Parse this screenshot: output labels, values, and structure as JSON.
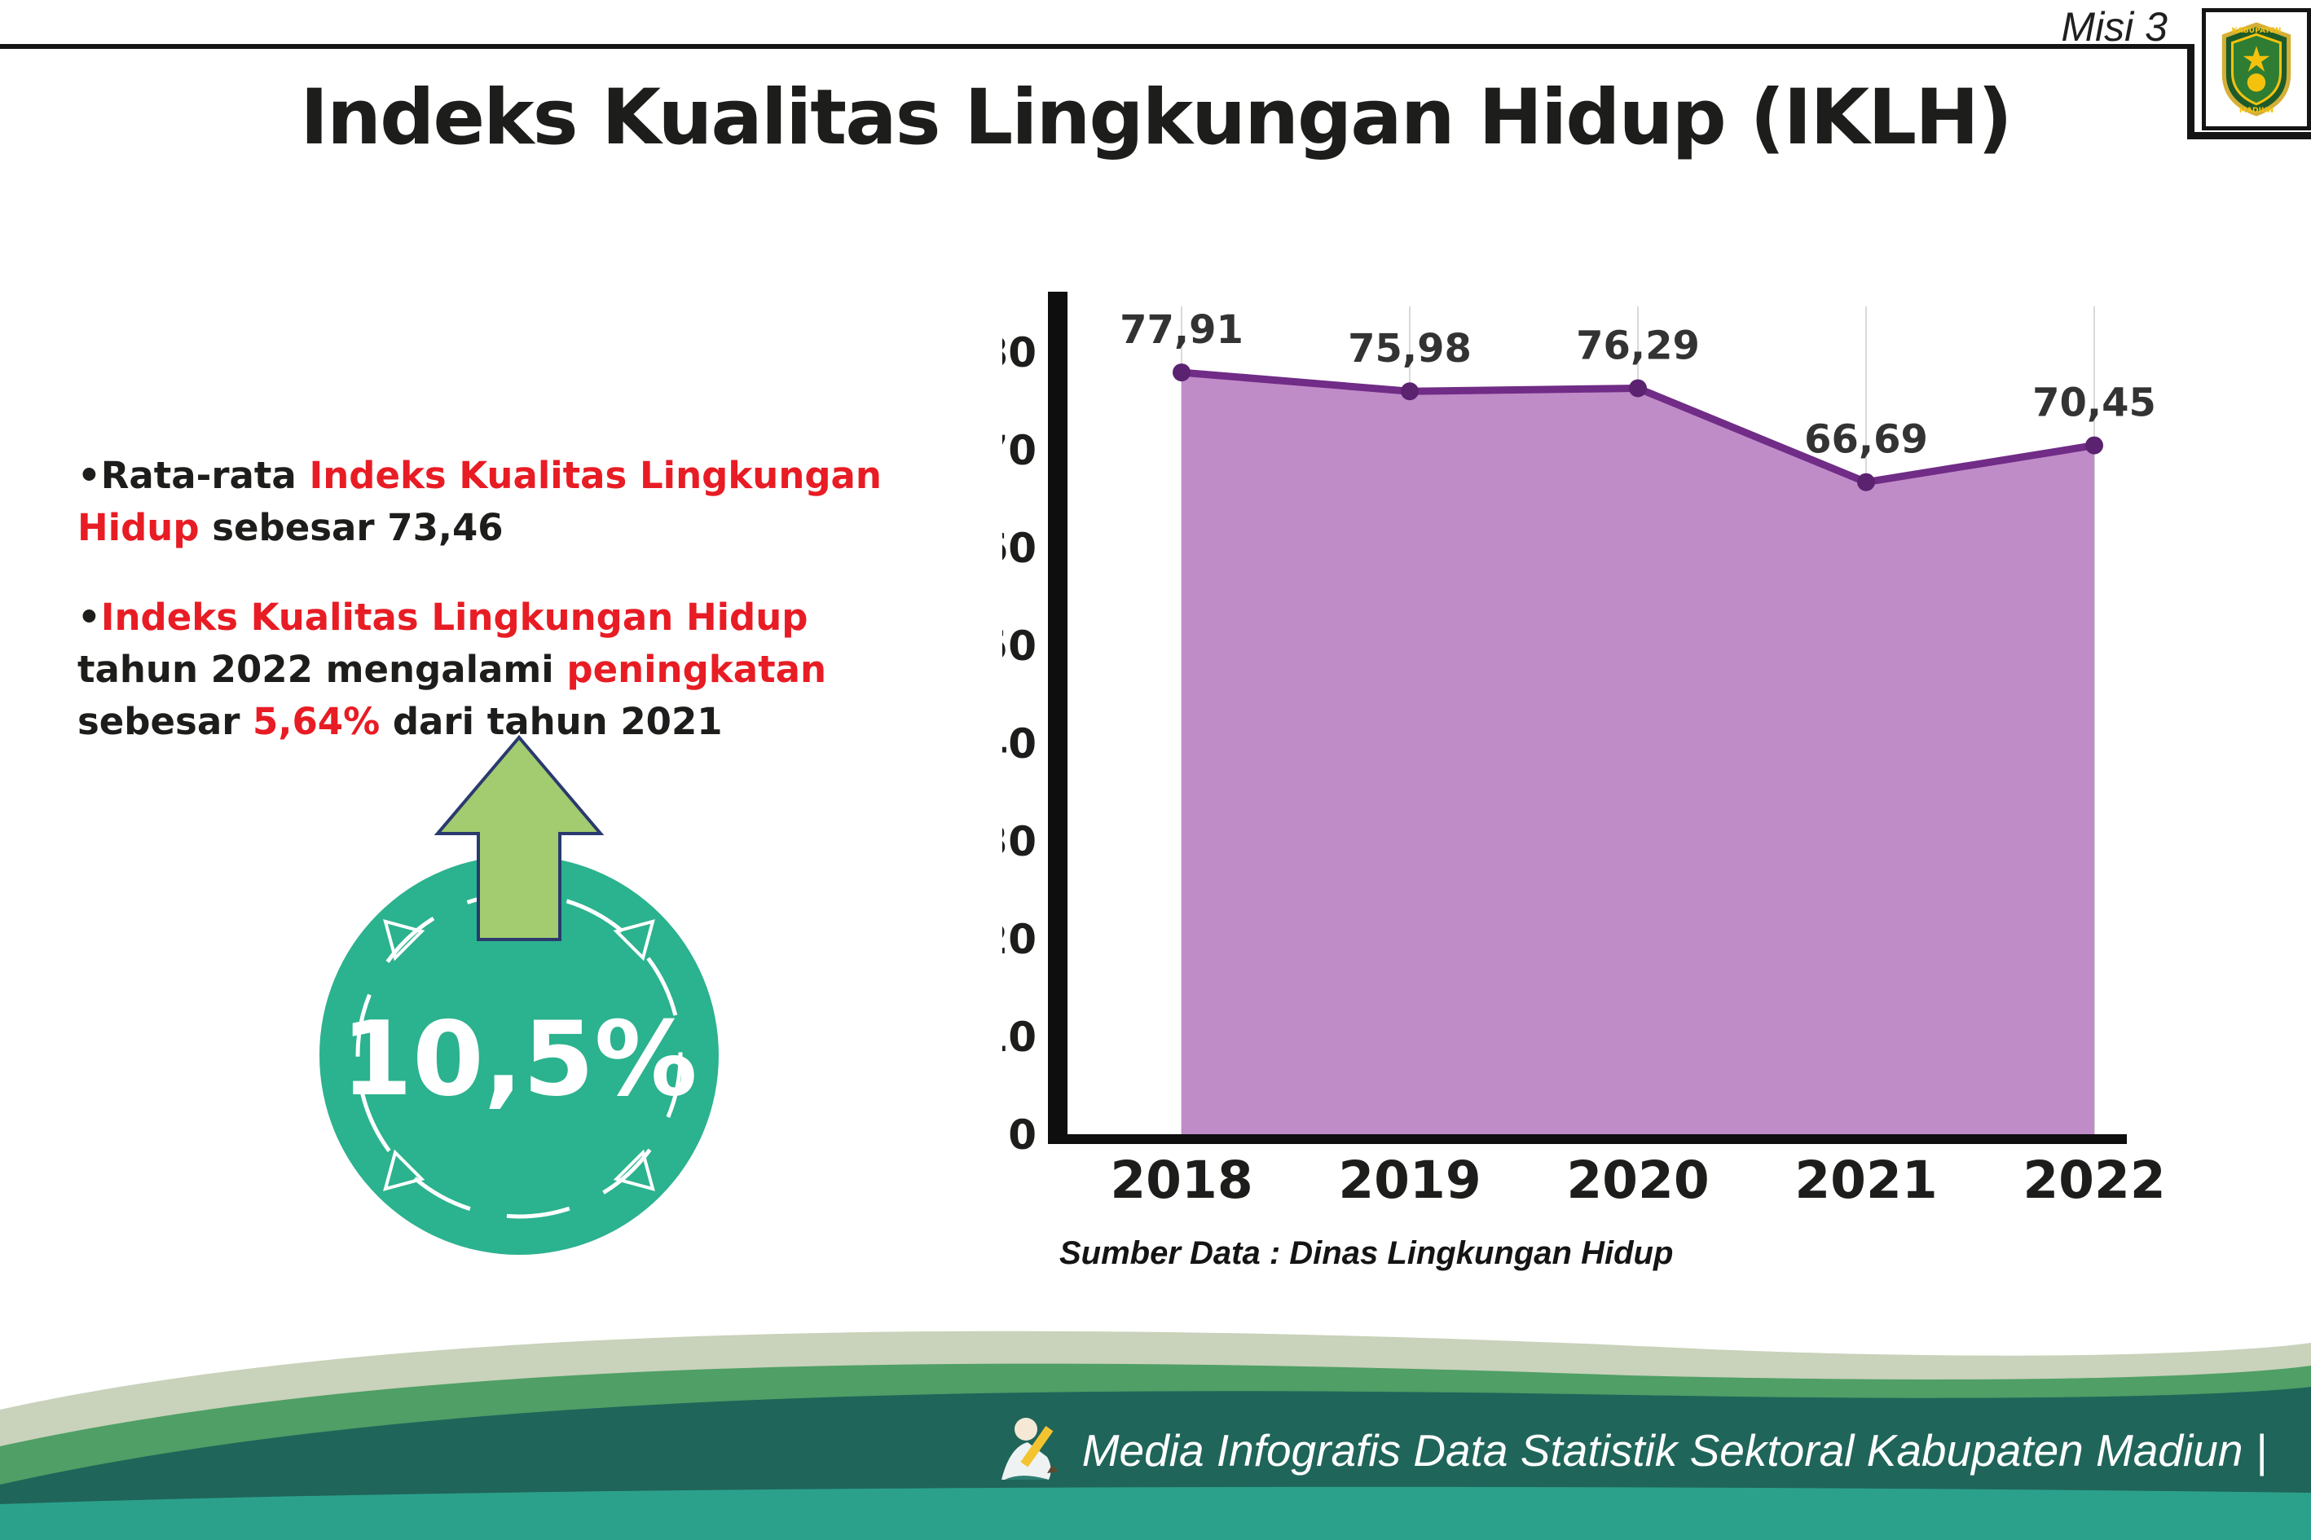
{
  "meta": {
    "misi": "Misi 3"
  },
  "logo": {
    "line1": "KABUPATEN",
    "line2": "MADIUN"
  },
  "title": "Indeks Kualitas Lingkungan Hidup (IKLH)",
  "bullets": [
    {
      "segments": [
        {
          "text": "Rata-rata ",
          "color": "dark"
        },
        {
          "text": "Indeks Kualitas Lingkungan Hidup",
          "color": "red"
        },
        {
          "text": " sebesar 73,46",
          "color": "dark"
        }
      ]
    },
    {
      "segments": [
        {
          "text": "Indeks Kualitas Lingkungan Hidup",
          "color": "red"
        },
        {
          "text": " tahun 2022 mengalami ",
          "color": "dark"
        },
        {
          "text": "peningkatan",
          "color": "red"
        },
        {
          "text": " sebesar ",
          "color": "dark"
        },
        {
          "text": "5,64%",
          "color": "red"
        },
        {
          "text": " dari tahun 2021",
          "color": "dark"
        }
      ]
    }
  ],
  "badge": {
    "value": "10,5%"
  },
  "chart_data": {
    "type": "area",
    "categories": [
      "2018",
      "2019",
      "2020",
      "2021",
      "2022"
    ],
    "values": [
      77.91,
      75.98,
      76.29,
      66.69,
      70.45
    ],
    "value_labels": [
      "77,91",
      "75,98",
      "76,29",
      "66,69",
      "70,45"
    ],
    "title": "Indeks Kualitas Lingkungan Hidup (IKLH)",
    "xlabel": "",
    "ylabel": "",
    "ylim": [
      0,
      80
    ],
    "ytick_step": 10,
    "grid": "vertical-light",
    "legend": "none",
    "area_color": "#c08cc8",
    "line_color": "#702c86",
    "point_color": "#5b2270"
  },
  "source": "Sumber Data : Dinas Lingkungan Hidup",
  "footer": {
    "text": "Media Infografis Data Statistik Sektoral Kabupaten Madiun |"
  }
}
